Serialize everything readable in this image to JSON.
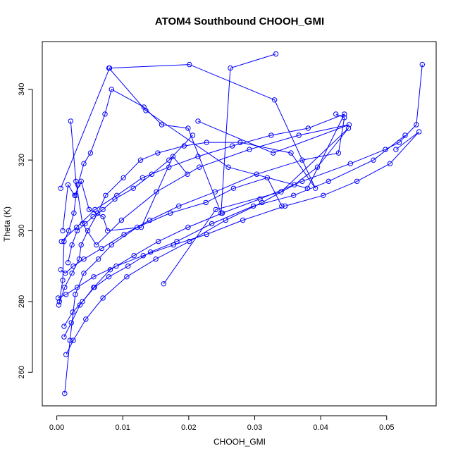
{
  "chart_data": {
    "type": "line",
    "title": "ATOM4 Southbound CHOOH_GMI",
    "xlabel": "CHOOH_GMI",
    "ylabel": "Theta (K)",
    "xlim": [
      -0.0022,
      0.0575
    ],
    "ylim": [
      250.5,
      353.5
    ],
    "x_ticks": [
      0.0,
      0.01,
      0.02,
      0.03,
      0.04,
      0.05
    ],
    "x_tick_labels": [
      "0.00",
      "0.01",
      "0.02",
      "0.03",
      "0.04",
      "0.05"
    ],
    "y_ticks": [
      260,
      280,
      300,
      320,
      340
    ],
    "y_tick_labels": [
      "260",
      "280",
      "300",
      "320",
      "340"
    ],
    "grid": false,
    "legend": "none",
    "marker": "open-circle",
    "line_color": "#0000ff",
    "series": [
      {
        "x": [
          0.0004,
          0.0009,
          0.0011,
          0.0018,
          0.0026,
          0.0029,
          0.0032,
          0.0041,
          0.0051,
          0.0073,
          0.0083,
          0.0132,
          0.0159,
          0.0199,
          0.0249,
          0.0263,
          0.0332
        ],
        "y": [
          280.0,
          286.0,
          297.0,
          300.0,
          305.0,
          310.0,
          313.0,
          319.0,
          322.0,
          333.0,
          340.0,
          335.0,
          330.0,
          329.0,
          305.0,
          346.0,
          350.0
        ]
      },
      {
        "x": [
          0.0003,
          0.0012,
          0.0023,
          0.0034,
          0.0037,
          0.0047,
          0.0062,
          0.0074,
          0.0101,
          0.0127,
          0.0153,
          0.0193,
          0.0227,
          0.0278,
          0.0355,
          0.0392,
          0.033,
          0.0201,
          0.008,
          0.0006
        ],
        "y": [
          279.0,
          284.0,
          288.0,
          292.0,
          296.0,
          300.0,
          305.0,
          310.0,
          315.0,
          320.0,
          322.0,
          324.0,
          325.0,
          325.0,
          322.0,
          312.0,
          337.0,
          347.0,
          346.0,
          312.0
        ]
      },
      {
        "x": [
          0.0011,
          0.0022,
          0.0035,
          0.0056,
          0.0081,
          0.0117,
          0.0154,
          0.0199,
          0.0251,
          0.0308,
          0.0372,
          0.0445,
          0.0498,
          0.0519,
          0.0545,
          0.0554
        ],
        "y": [
          270.0,
          274.0,
          279.0,
          284.0,
          289.0,
          293.0,
          297.0,
          301.0,
          305.0,
          309.0,
          314.0,
          319.0,
          323.0,
          325.0,
          330.0,
          347.0
        ]
      },
      {
        "x": [
          0.0006,
          0.0013,
          0.0025,
          0.0041,
          0.0068,
          0.0102,
          0.0141,
          0.0185,
          0.024,
          0.0303,
          0.0372,
          0.0427,
          0.0436,
          0.0423
        ],
        "y": [
          289.0,
          288.0,
          290.0,
          292.0,
          295.0,
          299.0,
          303.0,
          307.0,
          311.0,
          316.0,
          320.0,
          322.0,
          332.0,
          333.0
        ]
      },
      {
        "x": [
          0.0014,
          0.0025,
          0.0044,
          0.007,
          0.0106,
          0.015,
          0.0201,
          0.0256,
          0.0311,
          0.036,
          0.0395,
          0.0442,
          0.034,
          0.0241,
          0.0162
        ],
        "y": [
          265.0,
          269.0,
          275.0,
          281.0,
          287.0,
          292.0,
          297.0,
          303.0,
          308.0,
          313.0,
          318.0,
          329.0,
          311.0,
          306.0,
          285.0
        ]
      },
      {
        "x": [
          0.0012,
          0.002,
          0.0028,
          0.0041,
          0.0063,
          0.0083,
          0.0122,
          0.0172,
          0.0226,
          0.0268,
          0.0319,
          0.0341
        ],
        "y": [
          254.0,
          269.0,
          282.0,
          288.0,
          292.0,
          296.0,
          301.0,
          305.0,
          308.0,
          312.0,
          315.0,
          307.0
        ]
      },
      {
        "x": [
          0.0002,
          0.0014,
          0.0031,
          0.0056,
          0.009,
          0.0131,
          0.0177,
          0.0227,
          0.0282,
          0.0346,
          0.0404,
          0.0455,
          0.0505,
          0.0549,
          0.0514
        ],
        "y": [
          281.0,
          282.0,
          284.0,
          287.0,
          290.0,
          293.0,
          296.0,
          299.0,
          303.0,
          307.0,
          310.0,
          314.0,
          319.0,
          328.0,
          323.0
        ]
      },
      {
        "x": [
          0.0011,
          0.0024,
          0.0039,
          0.0057,
          0.0079,
          0.0108,
          0.0142,
          0.0182,
          0.0235,
          0.0298,
          0.0359,
          0.0412,
          0.048,
          0.0528
        ],
        "y": [
          273.0,
          277.0,
          280.0,
          284.0,
          287.0,
          290.0,
          294.0,
          297.0,
          302.0,
          307.0,
          310.0,
          314.0,
          320.0,
          327.0
        ]
      },
      {
        "x": [
          0.0007,
          0.003,
          0.0058,
          0.0091,
          0.013,
          0.017,
          0.0214,
          0.0266,
          0.0325,
          0.0381,
          0.0436,
          0.038,
          0.026,
          0.0135,
          0.0079
        ],
        "y": [
          297.0,
          301.0,
          306.0,
          310.0,
          315.0,
          318.0,
          321.0,
          324.0,
          327.0,
          329.0,
          333.0,
          312.0,
          318.0,
          334.0,
          346.0
        ]
      },
      {
        "x": [
          0.0021,
          0.0029,
          0.0039,
          0.006,
          0.0098,
          0.0151,
          0.0216,
          0.0292,
          0.0367,
          0.0443,
          0.0328,
          0.0214
        ],
        "y": [
          331.0,
          314.0,
          302.0,
          296.0,
          303.0,
          311.0,
          318.0,
          323.0,
          327.0,
          330.0,
          322.0,
          331.0
        ]
      },
      {
        "x": [
          0.0009,
          0.0017,
          0.0027,
          0.0037,
          0.0049,
          0.007,
          0.0077,
          0.0128,
          0.0176,
          0.0198
        ],
        "y": [
          300.0,
          313.0,
          310.0,
          314.0,
          306.0,
          304.0,
          300.0,
          301.0,
          321.0,
          316.0
        ]
      },
      {
        "x": [
          0.0017,
          0.0023,
          0.0031,
          0.0043,
          0.0055,
          0.007,
          0.0088,
          0.0116,
          0.0144,
          0.017,
          0.0206
        ],
        "y": [
          291.0,
          296.0,
          300.0,
          302.0,
          304.0,
          306.0,
          309.0,
          312.0,
          316.0,
          320.0,
          327.0
        ]
      }
    ]
  }
}
